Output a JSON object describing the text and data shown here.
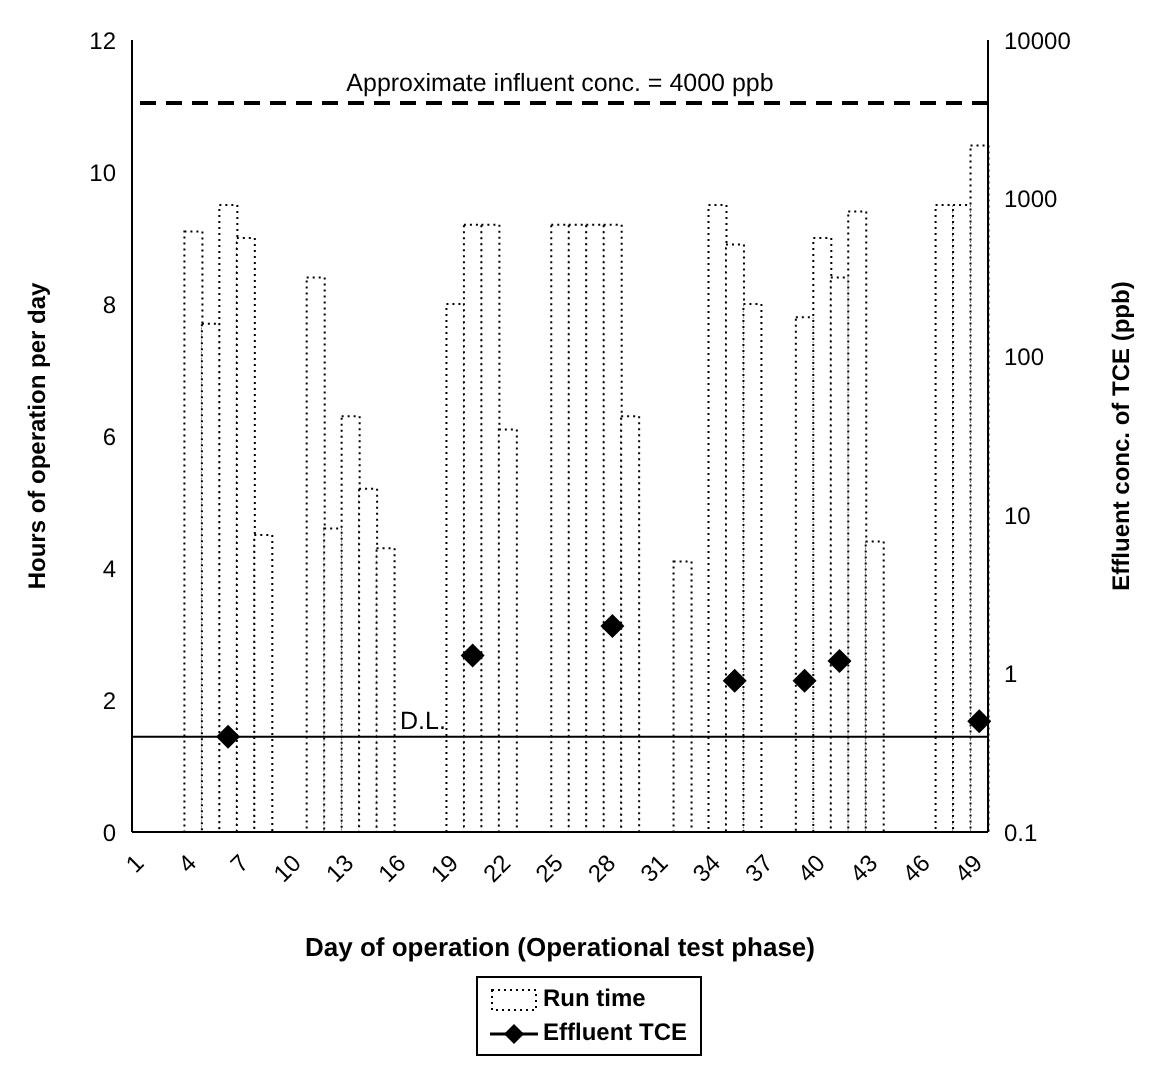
{
  "chart_data": {
    "type": "bar",
    "xlabel": "Day of operation (Operational test phase)",
    "ylabel": "Hours of operation per day",
    "y2label": "Effluent conc. of TCE (ppb)",
    "categories": [
      "1",
      null,
      null,
      "4",
      null,
      null,
      "7",
      null,
      null,
      "10",
      null,
      null,
      "13",
      null,
      null,
      "16",
      null,
      null,
      "19",
      null,
      null,
      "22",
      null,
      null,
      "25",
      null,
      null,
      "28",
      null,
      null,
      "31",
      null,
      null,
      "34",
      null,
      null,
      "37",
      null,
      null,
      "40",
      null,
      null,
      "43",
      null,
      null,
      "46",
      null,
      null,
      "49"
    ],
    "series": [
      {
        "name": "Run time",
        "color": "#000000",
        "values": [
          0,
          0,
          0,
          9.1,
          7.7,
          9.5,
          9.0,
          4.5,
          0,
          0,
          8.4,
          4.6,
          6.3,
          5.2,
          4.3,
          0,
          0,
          0,
          8.0,
          9.2,
          9.2,
          6.1,
          0,
          0,
          9.2,
          9.2,
          9.2,
          9.2,
          6.3,
          0,
          0,
          4.1,
          0,
          9.5,
          8.9,
          8.0,
          0,
          0,
          7.8,
          9.0,
          8.4,
          9.4,
          4.4,
          0,
          0,
          0,
          9.5,
          9.5,
          10.4
        ]
      },
      {
        "name": "Effluent TCE",
        "type": "line",
        "axis": "y2",
        "marker": "diamond",
        "color": "#000000",
        "values": [
          null,
          null,
          null,
          null,
          null,
          0.4,
          null,
          null,
          null,
          null,
          null,
          null,
          null,
          null,
          null,
          null,
          null,
          null,
          null,
          1.3,
          null,
          null,
          null,
          null,
          null,
          null,
          null,
          2.0,
          null,
          null,
          null,
          null,
          null,
          null,
          0.9,
          null,
          null,
          null,
          0.9,
          null,
          1.2,
          null,
          null,
          null,
          null,
          null,
          null,
          null,
          0.5
        ]
      }
    ],
    "ylim": [
      0,
      12
    ],
    "yticks": [
      0,
      2,
      4,
      6,
      8,
      10,
      12
    ],
    "y2lim": [
      0.1,
      10000
    ],
    "y2ticks": [
      0.1,
      1,
      10,
      100,
      1000,
      10000
    ],
    "log": "y2",
    "ref_lines": [
      {
        "axis": "y2",
        "value": 4000,
        "label": "Approximate influent conc. = 4000 ppb",
        "line_style": "dashed",
        "color": "#000000"
      },
      {
        "axis": "y2",
        "value": 0.4,
        "label": "D.L.",
        "line_style": "solid",
        "color": "#000000"
      }
    ],
    "legend": "bottom"
  }
}
